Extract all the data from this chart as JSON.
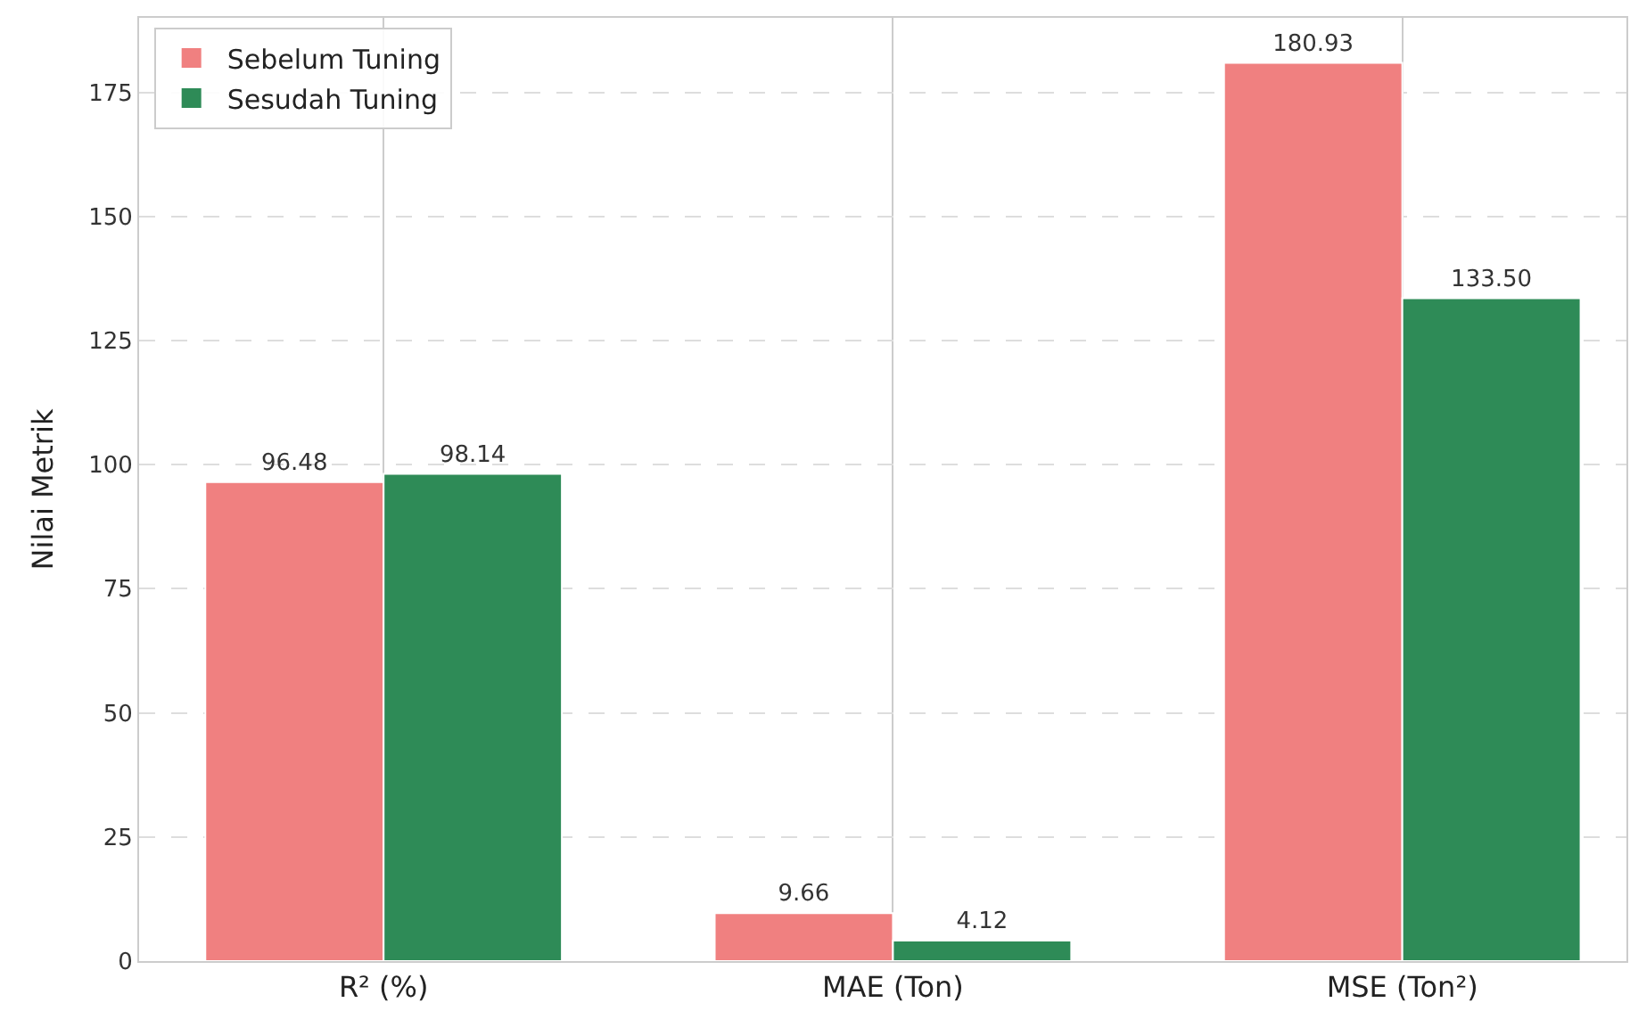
{
  "chart_data": {
    "type": "bar",
    "ylabel": "Nilai Metrik",
    "categories": [
      "R² (%)",
      "MAE (Ton)",
      "MSE (Ton²)"
    ],
    "series": [
      {
        "name": "Sebelum Tuning",
        "color": "#f08080",
        "values": [
          96.48,
          9.66,
          180.93
        ],
        "value_labels": [
          "96.48",
          "9.66",
          "180.93"
        ]
      },
      {
        "name": "Sesudah Tuning",
        "color": "#2e8b57",
        "values": [
          98.14,
          4.12,
          133.5
        ],
        "value_labels": [
          "98.14",
          "4.12",
          "133.50"
        ]
      }
    ],
    "ylim": [
      0,
      190
    ],
    "yticks": [
      0,
      25,
      50,
      75,
      100,
      125,
      150,
      175
    ],
    "grid": true,
    "legend": "top left"
  }
}
